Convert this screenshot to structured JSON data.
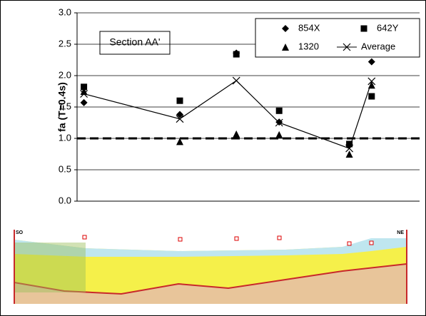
{
  "chart_data": {
    "type": "scatter",
    "ylabel": "fa (T=0.4s)",
    "annotation": "Section AA'",
    "x": [
      2,
      30,
      46.5,
      59,
      79.5,
      86
    ],
    "xlim": [
      0,
      100
    ],
    "ylim": [
      0,
      3
    ],
    "yticks": [
      {
        "value": 0,
        "label": "0.0"
      },
      0.5,
      {
        "value": 1,
        "label": "1.0"
      },
      1.5,
      {
        "value": 2,
        "label": "2.0"
      },
      2.5,
      {
        "value": 3,
        "label": "3.0"
      }
    ],
    "grid": true,
    "reference_line": 1,
    "legend": "top-right",
    "series": [
      {
        "name": "854X",
        "color": "#000000",
        "marker": "diamond",
        "values": [
          1.57,
          1.38,
          2.36,
          1.26,
          0.9,
          2.22
        ]
      },
      {
        "name": "642Y",
        "color": "#000000",
        "marker": "square",
        "values": [
          1.82,
          1.6,
          2.34,
          1.44,
          0.91,
          1.67
        ]
      },
      {
        "name": "1320",
        "color": "#000000",
        "marker": "triangle",
        "values": [
          1.75,
          0.95,
          1.07,
          1.06,
          0.75,
          1.85
        ]
      },
      {
        "name": "Average",
        "color": "#000000",
        "marker": "x",
        "line": true,
        "values": [
          1.71,
          1.31,
          1.92,
          1.25,
          0.84,
          1.91
        ]
      }
    ],
    "section_ends": [
      "SO",
      "NE"
    ]
  }
}
